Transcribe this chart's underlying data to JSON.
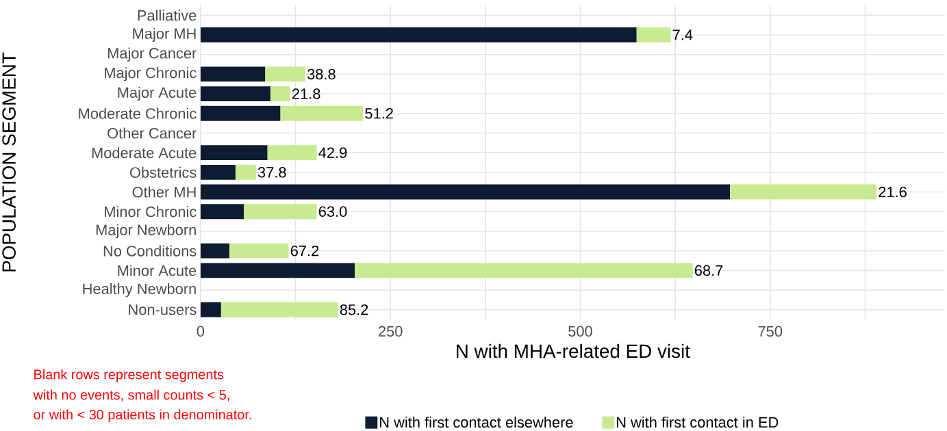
{
  "chart_data": {
    "type": "bar",
    "orientation": "horizontal",
    "stacked": true,
    "xlabel": "N with MHA-related ED visit",
    "ylabel": "POPULATION SEGMENT",
    "categories": [
      "Palliative",
      "Major MH",
      "Major Cancer",
      "Major Chronic",
      "Major Acute",
      "Moderate Chronic",
      "Other Cancer",
      "Moderate Acute",
      "Obstetrics",
      "Other MH",
      "Minor Chronic",
      "Major Newborn",
      "No Conditions",
      "Minor Acute",
      "Healthy Newborn",
      "Non-users"
    ],
    "series": [
      {
        "name": "N with first contact elsewhere",
        "color": "#0d1b33",
        "values": [
          null,
          574,
          null,
          85,
          92,
          105,
          null,
          88,
          46,
          697,
          57,
          null,
          38,
          203,
          null,
          27
        ]
      },
      {
        "name": "N with first contact in ED",
        "color": "#c8eb91",
        "values": [
          null,
          45,
          null,
          53,
          26,
          109,
          null,
          65,
          27,
          193,
          96,
          null,
          78,
          445,
          null,
          154
        ]
      }
    ],
    "xlim": [
      0,
      980
    ],
    "xticks": [
      0,
      {
        "value": 125,
        "label": null
      },
      250,
      {
        "value": 375,
        "label": null
      },
      500,
      {
        "value": 625,
        "label": null
      },
      750,
      {
        "value": 875,
        "label": null
      }
    ],
    "grid": true,
    "legend": "bottom",
    "annotations": [
      {
        "text": "7.4",
        "x": 619,
        "y": "Major MH"
      },
      {
        "text": "38.8",
        "x": 138,
        "y": "Major Chronic"
      },
      {
        "text": "21.8",
        "x": 118,
        "y": "Major Acute"
      },
      {
        "text": "51.2",
        "x": 214,
        "y": "Moderate Chronic"
      },
      {
        "text": "42.9",
        "x": 153,
        "y": "Moderate Acute"
      },
      {
        "text": "37.8",
        "x": 73,
        "y": "Obstetrics"
      },
      {
        "text": "21.6",
        "x": 890,
        "y": "Other MH"
      },
      {
        "text": "63.0",
        "x": 153,
        "y": "Minor Chronic"
      },
      {
        "text": "67.2",
        "x": 116,
        "y": "No Conditions"
      },
      {
        "text": "68.7",
        "x": 648,
        "y": "Minor Acute"
      },
      {
        "text": "85.2",
        "x": 181,
        "y": "Non-users"
      },
      "Blank rows represent segments",
      "with no events, small counts < 5,",
      "or with < 30 patients in denominator."
    ]
  }
}
